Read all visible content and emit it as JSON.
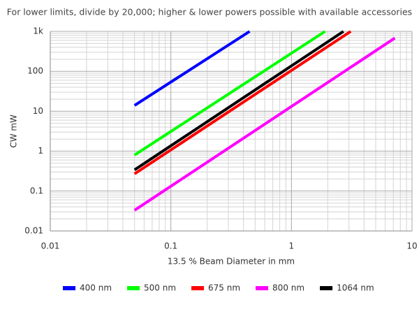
{
  "chart_data": {
    "type": "line",
    "title": "For lower limits, divide by 20,000; higher & lower powers possible with available accessories",
    "xlabel": "13.5 % Beam Diameter in mm",
    "ylabel": "CW mW",
    "xscale": "log",
    "yscale": "log",
    "grid": true,
    "minor_grid": true,
    "legend": "bottom",
    "xlim": [
      0.01,
      10
    ],
    "xticks": [
      0.01,
      0.1,
      1,
      10
    ],
    "ylim": [
      0.01,
      1000
    ],
    "yticks": [
      0.01,
      0.1,
      1,
      10,
      100,
      {
        "value": 1000,
        "label": "1k"
      }
    ],
    "series": [
      {
        "name": "400 nm",
        "color": "#0000ff",
        "x": [
          0.05,
          0.45
        ],
        "values": [
          14,
          1000
        ]
      },
      {
        "name": "500 nm",
        "color": "#00ff00",
        "x": [
          0.05,
          1.9
        ],
        "values": [
          0.8,
          1000
        ]
      },
      {
        "name": "675 nm",
        "color": "#ff0000",
        "x": [
          0.05,
          3.1
        ],
        "values": [
          0.27,
          1000
        ]
      },
      {
        "name": "800 nm",
        "color": "#ff00ff",
        "x": [
          0.05,
          7.2
        ],
        "values": [
          0.033,
          680
        ]
      },
      {
        "name": "1064 nm",
        "color": "#000000",
        "x": [
          0.05,
          2.7
        ],
        "values": [
          0.34,
          1000
        ]
      }
    ]
  }
}
